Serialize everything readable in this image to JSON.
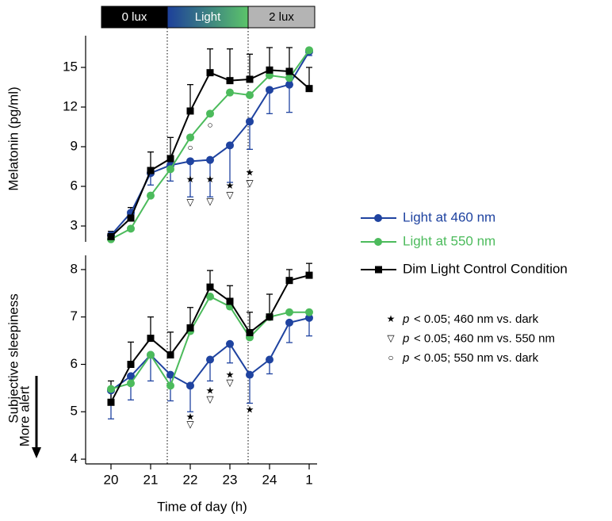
{
  "chart_data": {
    "type": "line",
    "xlabel": "Time of day (h)",
    "x": [
      20,
      20.5,
      21,
      21.5,
      22,
      22.5,
      23,
      23.5,
      24,
      24.5,
      25
    ],
    "xlim": [
      19.36,
      25.2
    ],
    "xticks": [
      20,
      21,
      22,
      23,
      24,
      {
        "value": 25,
        "label": "1"
      }
    ],
    "phases": [
      {
        "label": "0 lux",
        "start": 19.76,
        "end": 21.42,
        "colors": [
          "#000000"
        ]
      },
      {
        "label": "Light",
        "start": 21.42,
        "end": 23.46,
        "colors": [
          "#1d3f9a",
          "#5cc46a"
        ]
      },
      {
        "label": "2 lux",
        "start": 23.46,
        "end": 25.14,
        "colors": [
          "#b4b4b4"
        ]
      }
    ],
    "legend": [
      {
        "name": "Light at 460 nm",
        "color": "#1f43a0",
        "marker": "circle",
        "error": "down"
      },
      {
        "name": "Light at 550 nm",
        "color": "#4cbb5c",
        "marker": "circle",
        "error": "none"
      },
      {
        "name": "Dim Light Control Condition",
        "color": "#000000",
        "marker": "square",
        "error": "up"
      }
    ],
    "key": [
      {
        "symbol": "★",
        "var": "p",
        "text": "< 0.05; 460 nm vs. dark"
      },
      {
        "symbol": "▽",
        "var": "p",
        "text": "< 0.05; 460 nm vs. 550 nm"
      },
      {
        "symbol": "○",
        "var": "p",
        "text": "< 0.05; 550 nm vs. dark"
      }
    ],
    "panels": [
      {
        "ylabel": "Melatonin (pg/ml)",
        "ylim": [
          1.8,
          17.4
        ],
        "yticks": [
          3,
          6,
          9,
          12,
          15
        ],
        "series": [
          {
            "values": [
              2.3,
              4.0,
              7.0,
              7.6,
              7.9,
              8.0,
              9.1,
              10.9,
              13.3,
              13.7,
              16.2
            ],
            "errors": [
              0.3,
              0.4,
              0.9,
              1.2,
              2.7,
              2.8,
              2.8,
              2.1,
              1.8,
              2.1,
              0.3
            ]
          },
          {
            "values": [
              2.0,
              2.8,
              5.3,
              7.3,
              9.7,
              11.5,
              13.1,
              12.9,
              14.4,
              14.2,
              16.3
            ]
          },
          {
            "values": [
              2.2,
              3.6,
              7.2,
              8.1,
              11.7,
              14.6,
              14.0,
              14.1,
              14.8,
              14.7,
              13.4
            ],
            "errors": [
              0.4,
              0.8,
              1.4,
              1.6,
              2.0,
              1.8,
              2.4,
              1.9,
              1.7,
              1.8,
              1.6
            ]
          }
        ],
        "annotations": [
          {
            "text": "★",
            "x": 22,
            "y": 6.5
          },
          {
            "text": "▽",
            "x": 22,
            "y": 4.75
          },
          {
            "text": "★",
            "x": 22.5,
            "y": 6.5
          },
          {
            "text": "▽",
            "x": 22.5,
            "y": 4.8
          },
          {
            "text": "★",
            "x": 23,
            "y": 6.0
          },
          {
            "text": "▽",
            "x": 23,
            "y": 5.3
          },
          {
            "text": "★",
            "x": 23.5,
            "y": 7.0
          },
          {
            "text": "▽",
            "x": 23.5,
            "y": 6.2
          },
          {
            "text": "○",
            "x": 22,
            "y": 8.9
          },
          {
            "text": "○",
            "x": 22.5,
            "y": 10.6
          }
        ]
      },
      {
        "ylabel": "Subjective sleepiness",
        "alert_label": "More alert",
        "ylim": [
          3.9,
          8.3
        ],
        "yticks": [
          4,
          5,
          6,
          7,
          8
        ],
        "series": [
          {
            "values": [
              5.45,
              5.75,
              6.2,
              5.78,
              5.55,
              6.1,
              6.43,
              5.78,
              6.1,
              6.88,
              6.98
            ],
            "errors": [
              0.6,
              0.5,
              0.55,
              0.55,
              0.55,
              0.45,
              0.4,
              0.6,
              0.3,
              0.42,
              0.38
            ]
          },
          {
            "values": [
              5.48,
              5.6,
              6.2,
              5.55,
              6.7,
              7.43,
              7.22,
              6.57,
              7.0,
              7.1,
              7.1
            ]
          },
          {
            "values": [
              5.2,
              6.0,
              6.55,
              6.2,
              6.77,
              7.63,
              7.33,
              6.67,
              7.0,
              7.77,
              7.88
            ],
            "errors": [
              0.45,
              0.47,
              0.45,
              0.48,
              0.43,
              0.35,
              0.33,
              0.43,
              0.48,
              0.23,
              0.25
            ]
          }
        ],
        "annotations": [
          {
            "text": "★",
            "x": 22,
            "y": 4.88
          },
          {
            "text": "▽",
            "x": 22,
            "y": 4.72
          },
          {
            "text": "★",
            "x": 22.5,
            "y": 5.43
          },
          {
            "text": "▽",
            "x": 22.5,
            "y": 5.25
          },
          {
            "text": "★",
            "x": 23,
            "y": 5.77
          },
          {
            "text": "▽",
            "x": 23,
            "y": 5.6
          },
          {
            "text": "★",
            "x": 23.5,
            "y": 5.03
          }
        ]
      }
    ]
  }
}
